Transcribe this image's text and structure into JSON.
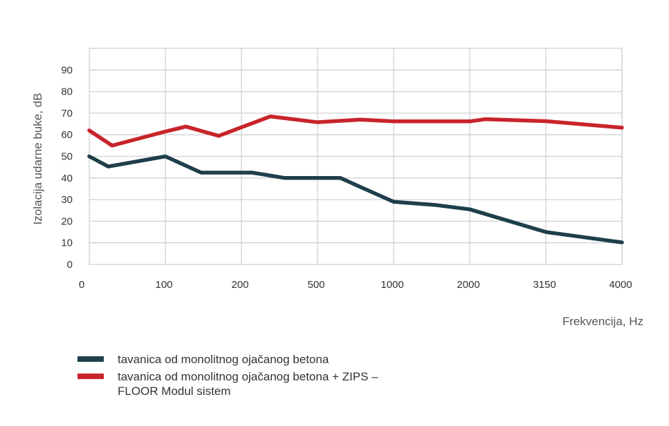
{
  "chart_data": {
    "type": "line",
    "title": "",
    "xlabel": "Frekvencija, Hz",
    "ylabel": "Izolacija udarne buke, dB",
    "x_tick_labels": [
      "0",
      "100",
      "200",
      "500",
      "1000",
      "2000",
      "3150",
      "4000"
    ],
    "y_ticks": [
      0,
      10,
      20,
      30,
      40,
      50,
      60,
      70,
      80,
      90
    ],
    "ylim": [
      0,
      100
    ],
    "xlim": [
      0,
      7
    ],
    "grid": true,
    "legend_placement": "bottom",
    "series": [
      {
        "name": "tavanica od monolitnog ojačanog betona",
        "color": "#1e3f4b",
        "points": [
          [
            0,
            50
          ],
          [
            0.25,
            45.3
          ],
          [
            1,
            50
          ],
          [
            1.47,
            42.5
          ],
          [
            2.14,
            42.5
          ],
          [
            2.57,
            40
          ],
          [
            3.3,
            40
          ],
          [
            4,
            29
          ],
          [
            4.55,
            27.5
          ],
          [
            5,
            25.5
          ],
          [
            6,
            15
          ],
          [
            7,
            10.2
          ]
        ]
      },
      {
        "name": "tavanica od monolitnog ojačanog betona + ZIPS – FLOOR Modul sistem",
        "color": "#c8242a",
        "points": [
          [
            0,
            62
          ],
          [
            0.3,
            55
          ],
          [
            1,
            61.5
          ],
          [
            1.27,
            63.8
          ],
          [
            1.7,
            59.5
          ],
          [
            2.38,
            68.5
          ],
          [
            3.0,
            65.8
          ],
          [
            3.56,
            67
          ],
          [
            4,
            66.2
          ],
          [
            5,
            66.2
          ],
          [
            5.2,
            67.2
          ],
          [
            6,
            66.3
          ],
          [
            7,
            63.3
          ]
        ]
      }
    ]
  }
}
